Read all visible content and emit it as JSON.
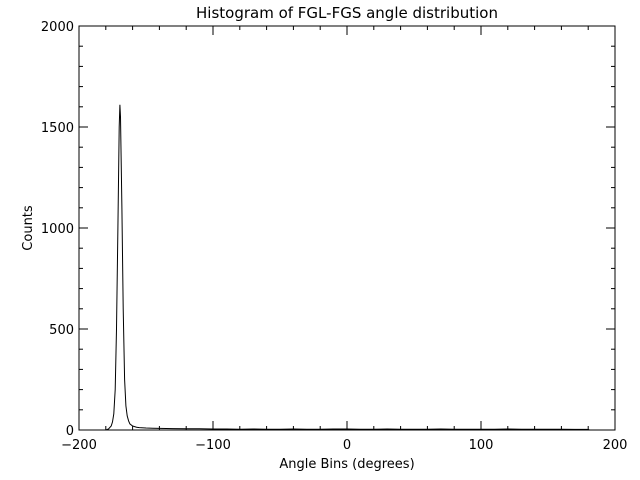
{
  "chart_data": {
    "type": "line",
    "title": "Histogram of FGL-FGS angle distribution",
    "xlabel": "Angle Bins (degrees)",
    "ylabel": "Counts",
    "xlim": [
      -200,
      200
    ],
    "ylim": [
      0,
      2000
    ],
    "xticks": [
      -200,
      -100,
      0,
      100,
      200
    ],
    "yticks": [
      0,
      500,
      1000,
      1500,
      2000
    ],
    "x_minor_step": 20,
    "y_minor_step": 100,
    "grid": false,
    "line_color": "#000000",
    "series": [
      {
        "name": "Counts",
        "points": [
          [
            -180,
            0
          ],
          [
            -178,
            5
          ],
          [
            -176,
            20
          ],
          [
            -175,
            40
          ],
          [
            -174,
            80
          ],
          [
            -173,
            200
          ],
          [
            -172,
            500
          ],
          [
            -171,
            1000
          ],
          [
            -170,
            1500
          ],
          [
            -169.5,
            1610
          ],
          [
            -169,
            1550
          ],
          [
            -168,
            1100
          ],
          [
            -167,
            600
          ],
          [
            -166,
            250
          ],
          [
            -165,
            120
          ],
          [
            -164,
            70
          ],
          [
            -163,
            45
          ],
          [
            -162,
            30
          ],
          [
            -160,
            20
          ],
          [
            -157,
            14
          ],
          [
            -155,
            12
          ],
          [
            -150,
            10
          ],
          [
            -145,
            9
          ],
          [
            -140,
            8
          ],
          [
            -130,
            7
          ],
          [
            -120,
            6
          ],
          [
            -110,
            6
          ],
          [
            -100,
            5
          ],
          [
            -90,
            5
          ],
          [
            -80,
            4
          ],
          [
            -70,
            5
          ],
          [
            -60,
            4
          ],
          [
            -50,
            4
          ],
          [
            -40,
            5
          ],
          [
            -30,
            4
          ],
          [
            -20,
            4
          ],
          [
            -10,
            5
          ],
          [
            0,
            5
          ],
          [
            10,
            4
          ],
          [
            20,
            4
          ],
          [
            30,
            5
          ],
          [
            40,
            4
          ],
          [
            50,
            4
          ],
          [
            60,
            4
          ],
          [
            70,
            5
          ],
          [
            80,
            4
          ],
          [
            90,
            4
          ],
          [
            100,
            4
          ],
          [
            110,
            4
          ],
          [
            120,
            5
          ],
          [
            130,
            4
          ],
          [
            140,
            4
          ],
          [
            150,
            4
          ],
          [
            160,
            4
          ],
          [
            170,
            3
          ],
          [
            180,
            3
          ],
          [
            181,
            0
          ]
        ]
      }
    ]
  }
}
